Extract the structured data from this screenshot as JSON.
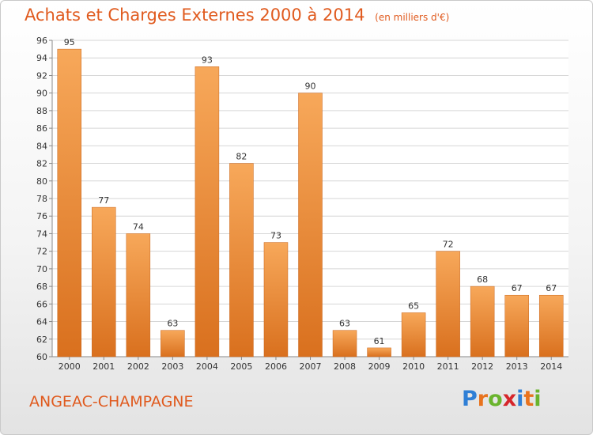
{
  "header": {
    "title": "Achats et Charges Externes 2000 à 2014",
    "unit": "(en milliers d'€)"
  },
  "footer": {
    "place": "ANGEAC-CHAMPAGNE",
    "logo": "Proxiti",
    "logo_letters": [
      "P",
      "r",
      "o",
      "x",
      "i",
      "t",
      "i"
    ],
    "logo_colors": [
      "#2f7fd6",
      "#e8731e",
      "#6ab42d",
      "#d6262b",
      "#2f7fd6",
      "#e8731e",
      "#6ab42d"
    ]
  },
  "chart_data": {
    "type": "bar",
    "title": "Achats et Charges Externes 2000 à 2014",
    "subtitle": "(en milliers d'€)",
    "xlabel": "",
    "ylabel": "",
    "categories": [
      "2000",
      "2001",
      "2002",
      "2003",
      "2004",
      "2005",
      "2006",
      "2007",
      "2008",
      "2009",
      "2010",
      "2011",
      "2012",
      "2013",
      "2014"
    ],
    "values": [
      95,
      77,
      74,
      63,
      93,
      82,
      73,
      90,
      63,
      61,
      65,
      72,
      68,
      67,
      67
    ],
    "ylim": [
      60,
      96
    ],
    "yticks": [
      60,
      62,
      64,
      66,
      68,
      70,
      72,
      74,
      76,
      78,
      80,
      82,
      84,
      86,
      88,
      90,
      92,
      94,
      96
    ],
    "grid": true,
    "colors": {
      "bar_top": "#f7a85a",
      "bar_bottom": "#d9701e",
      "axis_text": "#333333",
      "grid": "#d6d6d6",
      "title": "#e05a1e"
    }
  }
}
